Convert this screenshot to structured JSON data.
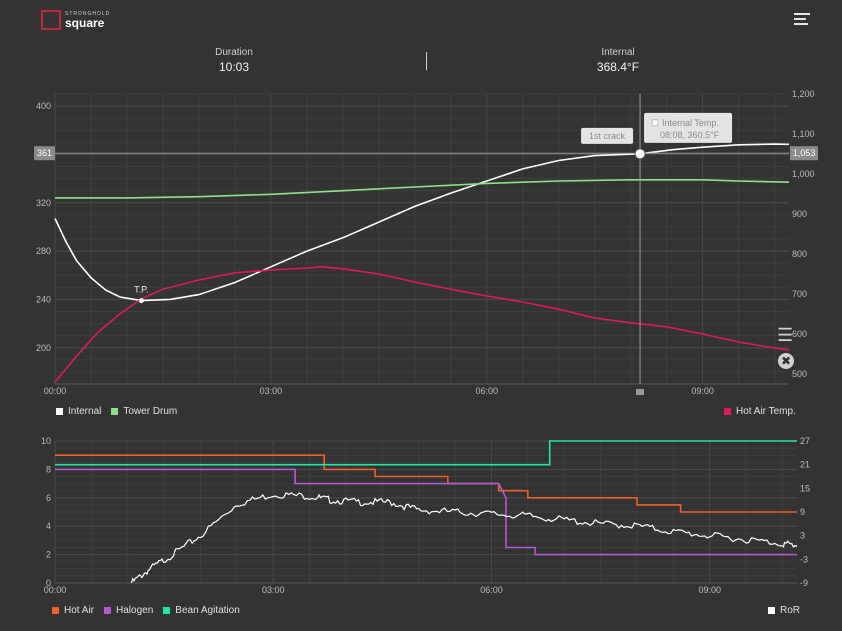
{
  "app": {
    "logo_small": "STRONGHOLD",
    "logo_big": "square"
  },
  "stats": {
    "duration": {
      "label": "Duration",
      "value": "10:03"
    },
    "internal": {
      "label": "Internal",
      "value": "368.4°F"
    }
  },
  "icons": {
    "menu": "menu-icon",
    "layers": "layers-icon",
    "fan": "fan-icon"
  },
  "colors": {
    "internal": "#ffffff",
    "tower_drum": "#8fe08a",
    "hot_air_temp": "#e0195a",
    "hot_air": "#f0612a",
    "halogen": "#b45ad2",
    "bean_agitation": "#22e6a6",
    "ror": "#ffffff"
  },
  "chart_data": [
    {
      "type": "line",
      "title": "",
      "xlabel": "",
      "ylabel": "",
      "x_ticks": [
        "00:00",
        "03:00",
        "06:00",
        "09:00"
      ],
      "xlim_minutes": [
        0,
        10.2
      ],
      "y_left_ticks": [
        "200",
        "240",
        "280",
        "320",
        "360",
        "400"
      ],
      "ylim_left": [
        170,
        410
      ],
      "y_right_ticks": [
        "500",
        "600",
        "700",
        "800",
        "900",
        "1,000",
        "1,100",
        "1,200"
      ],
      "ylim_right": [
        475,
        1200
      ],
      "grid": true,
      "cursor": {
        "x_minutes": 8.13,
        "left_readout": "361",
        "right_readout": "1,053",
        "left_value": 361
      },
      "marker_label": "T.P.",
      "marker": {
        "x_minutes": 1.2,
        "y": 239
      },
      "event_label": "1st crack",
      "tooltip": {
        "title": "Internal Temp.",
        "value": "08:08, 360.5°F",
        "x_minutes": 8.13,
        "y": 360.5
      },
      "series": [
        {
          "name": "Internal",
          "axis": "left",
          "legend_pos": "bottom-left",
          "points": [
            [
              0,
              307
            ],
            [
              0.15,
              288
            ],
            [
              0.3,
              272
            ],
            [
              0.5,
              258
            ],
            [
              0.7,
              248
            ],
            [
              0.9,
              242
            ],
            [
              1.2,
              239
            ],
            [
              1.6,
              240
            ],
            [
              2.0,
              244
            ],
            [
              2.5,
              254
            ],
            [
              3.0,
              267
            ],
            [
              3.5,
              280
            ],
            [
              4.0,
              291
            ],
            [
              4.5,
              304
            ],
            [
              5.0,
              317
            ],
            [
              5.5,
              328
            ],
            [
              6.0,
              338
            ],
            [
              6.5,
              348
            ],
            [
              7.0,
              355
            ],
            [
              7.5,
              359
            ],
            [
              8.13,
              360.5
            ],
            [
              8.6,
              364
            ],
            [
              9.0,
              366
            ],
            [
              9.5,
              368
            ],
            [
              10.0,
              368.5
            ],
            [
              10.2,
              368.4
            ]
          ]
        },
        {
          "name": "Tower Drum",
          "axis": "left",
          "legend_pos": "bottom-left",
          "points": [
            [
              0,
              324
            ],
            [
              1.0,
              324
            ],
            [
              2.0,
              325
            ],
            [
              3.0,
              327
            ],
            [
              4.0,
              330
            ],
            [
              5.0,
              333
            ],
            [
              6.0,
              336
            ],
            [
              7.0,
              338
            ],
            [
              8.0,
              339
            ],
            [
              9.0,
              339
            ],
            [
              9.5,
              338
            ],
            [
              10.2,
              337
            ]
          ]
        },
        {
          "name": "Hot Air Temp.",
          "axis": "right",
          "legend_pos": "bottom-right",
          "points": [
            [
              0,
              480
            ],
            [
              0.3,
              545
            ],
            [
              0.6,
              605
            ],
            [
              0.9,
              650
            ],
            [
              1.2,
              688
            ],
            [
              1.5,
              712
            ],
            [
              2.0,
              735
            ],
            [
              2.5,
              753
            ],
            [
              3.0,
              760
            ],
            [
              3.5,
              765
            ],
            [
              3.7,
              768
            ],
            [
              4.0,
              763
            ],
            [
              4.5,
              750
            ],
            [
              5.0,
              730
            ],
            [
              5.5,
              712
            ],
            [
              6.0,
              695
            ],
            [
              6.5,
              680
            ],
            [
              7.0,
              662
            ],
            [
              7.5,
              640
            ],
            [
              8.0,
              628
            ],
            [
              8.5,
              618
            ],
            [
              9.0,
              600
            ],
            [
              9.5,
              580
            ],
            [
              10.0,
              565
            ],
            [
              10.2,
              560
            ]
          ]
        }
      ]
    },
    {
      "type": "line",
      "title": "",
      "x_ticks": [
        "00:00",
        "03:00",
        "06:00",
        "09:00"
      ],
      "xlim_minutes": [
        0,
        10.2
      ],
      "y_left_ticks": [
        "0",
        "2",
        "4",
        "6",
        "8",
        "10"
      ],
      "ylim_left": [
        0,
        10
      ],
      "y_right_ticks": [
        "-9",
        "-3",
        "3",
        "9",
        "15",
        "21",
        "27"
      ],
      "ylim_right": [
        -9,
        27
      ],
      "grid": true,
      "series": [
        {
          "name": "Hot Air",
          "axis": "left",
          "step": true,
          "legend_pos": "bottom-left",
          "points": [
            [
              0,
              9
            ],
            [
              3.7,
              9
            ],
            [
              3.7,
              8
            ],
            [
              4.4,
              8
            ],
            [
              4.4,
              7.5
            ],
            [
              5.4,
              7.5
            ],
            [
              5.4,
              7
            ],
            [
              6.1,
              7
            ],
            [
              6.1,
              6.5
            ],
            [
              6.5,
              6.5
            ],
            [
              6.5,
              6
            ],
            [
              8.0,
              6
            ],
            [
              8.0,
              5.5
            ],
            [
              8.6,
              5.5
            ],
            [
              8.6,
              5
            ],
            [
              10.2,
              5
            ]
          ]
        },
        {
          "name": "Halogen",
          "axis": "left",
          "step": true,
          "legend_pos": "bottom-left",
          "points": [
            [
              0,
              8
            ],
            [
              3.3,
              8
            ],
            [
              3.3,
              7
            ],
            [
              6.1,
              7
            ],
            [
              6.2,
              6
            ],
            [
              6.2,
              2.5
            ],
            [
              6.6,
              2.5
            ],
            [
              6.6,
              2
            ],
            [
              10.2,
              2
            ]
          ]
        },
        {
          "name": "Bean Agitation",
          "axis": "right",
          "step": true,
          "legend_pos": "bottom-left",
          "points": [
            [
              0,
              21
            ],
            [
              6.8,
              21
            ],
            [
              6.8,
              27
            ],
            [
              10.2,
              27
            ]
          ]
        },
        {
          "name": "RoR",
          "axis": "right",
          "noisy": true,
          "legend_pos": "bottom-right",
          "points": [
            [
              1.05,
              -9
            ],
            [
              1.3,
              -5.5
            ],
            [
              1.6,
              -2
            ],
            [
              2.0,
              3
            ],
            [
              2.5,
              11
            ],
            [
              3.0,
              13.5
            ],
            [
              3.5,
              13
            ],
            [
              3.8,
              12
            ],
            [
              4.2,
              11.5
            ],
            [
              4.6,
              11.5
            ],
            [
              5.0,
              9.5
            ],
            [
              5.5,
              9
            ],
            [
              6.0,
              8.5
            ],
            [
              6.5,
              8
            ],
            [
              7.0,
              7
            ],
            [
              7.5,
              6
            ],
            [
              8.0,
              5.5
            ],
            [
              8.5,
              4
            ],
            [
              9.0,
              3
            ],
            [
              9.5,
              2
            ],
            [
              10.0,
              1
            ],
            [
              10.2,
              0.5
            ]
          ]
        }
      ]
    }
  ]
}
